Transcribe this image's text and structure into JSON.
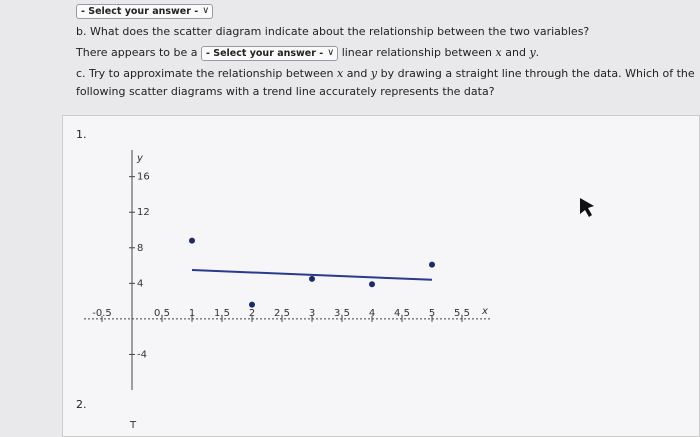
{
  "top_dropdown": "- Select your answer -",
  "question_b": {
    "text": "b. What does the scatter diagram indicate about the relationship between the two variables?",
    "sentence_start": "There appears to be a",
    "dropdown": "- Select your answer -",
    "sentence_middle": "linear relationship between",
    "var_x": "x",
    "word_and": "and",
    "var_y": "y",
    "sentence_end": "."
  },
  "question_c": {
    "line1": "c. Try to approximate the relationship between",
    "var_x": "x",
    "word_and": "and",
    "var_y": "y",
    "line1_end": "by drawing a straight line through the data. Which of the",
    "line2": "following scatter diagrams with a trend line accurately represents the data?"
  },
  "option_1": {
    "label": "1.",
    "diagram": {
      "type": "scatter",
      "x_label": "x",
      "y_label": "y",
      "xlim": [
        -0.8,
        6
      ],
      "ylim": [
        -8,
        19
      ],
      "xticks": [
        -0.5,
        0.5,
        1,
        1.5,
        2,
        2.5,
        3,
        3.5,
        4,
        4.5,
        5,
        5.5
      ],
      "yticks": [
        -4,
        4,
        8,
        12,
        16
      ],
      "points": {
        "x": [
          1,
          2,
          3,
          4,
          5
        ],
        "y": [
          8.8,
          1.6,
          4.5,
          3.9,
          6.1
        ],
        "color": "#1a2a6c"
      },
      "trend_line": {
        "x": [
          1,
          5
        ],
        "y": [
          5.5,
          4.4
        ],
        "color": "#2a3a8c"
      }
    }
  },
  "option_2": {
    "label": "2."
  }
}
